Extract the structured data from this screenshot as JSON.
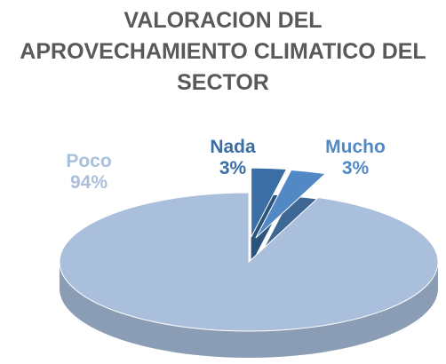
{
  "chart_data": {
    "type": "pie",
    "title": "VALORACION  DEL APROVECHAMIENTO CLIMATICO DEL SECTOR",
    "categories": [
      "Nada",
      "Mucho",
      "Poco"
    ],
    "values": [
      3,
      3,
      94
    ],
    "value_labels": [
      "3%",
      "3%",
      "94%"
    ],
    "colors": [
      "#3b6ea5",
      "#5289c4",
      "#a9bfdc"
    ]
  }
}
